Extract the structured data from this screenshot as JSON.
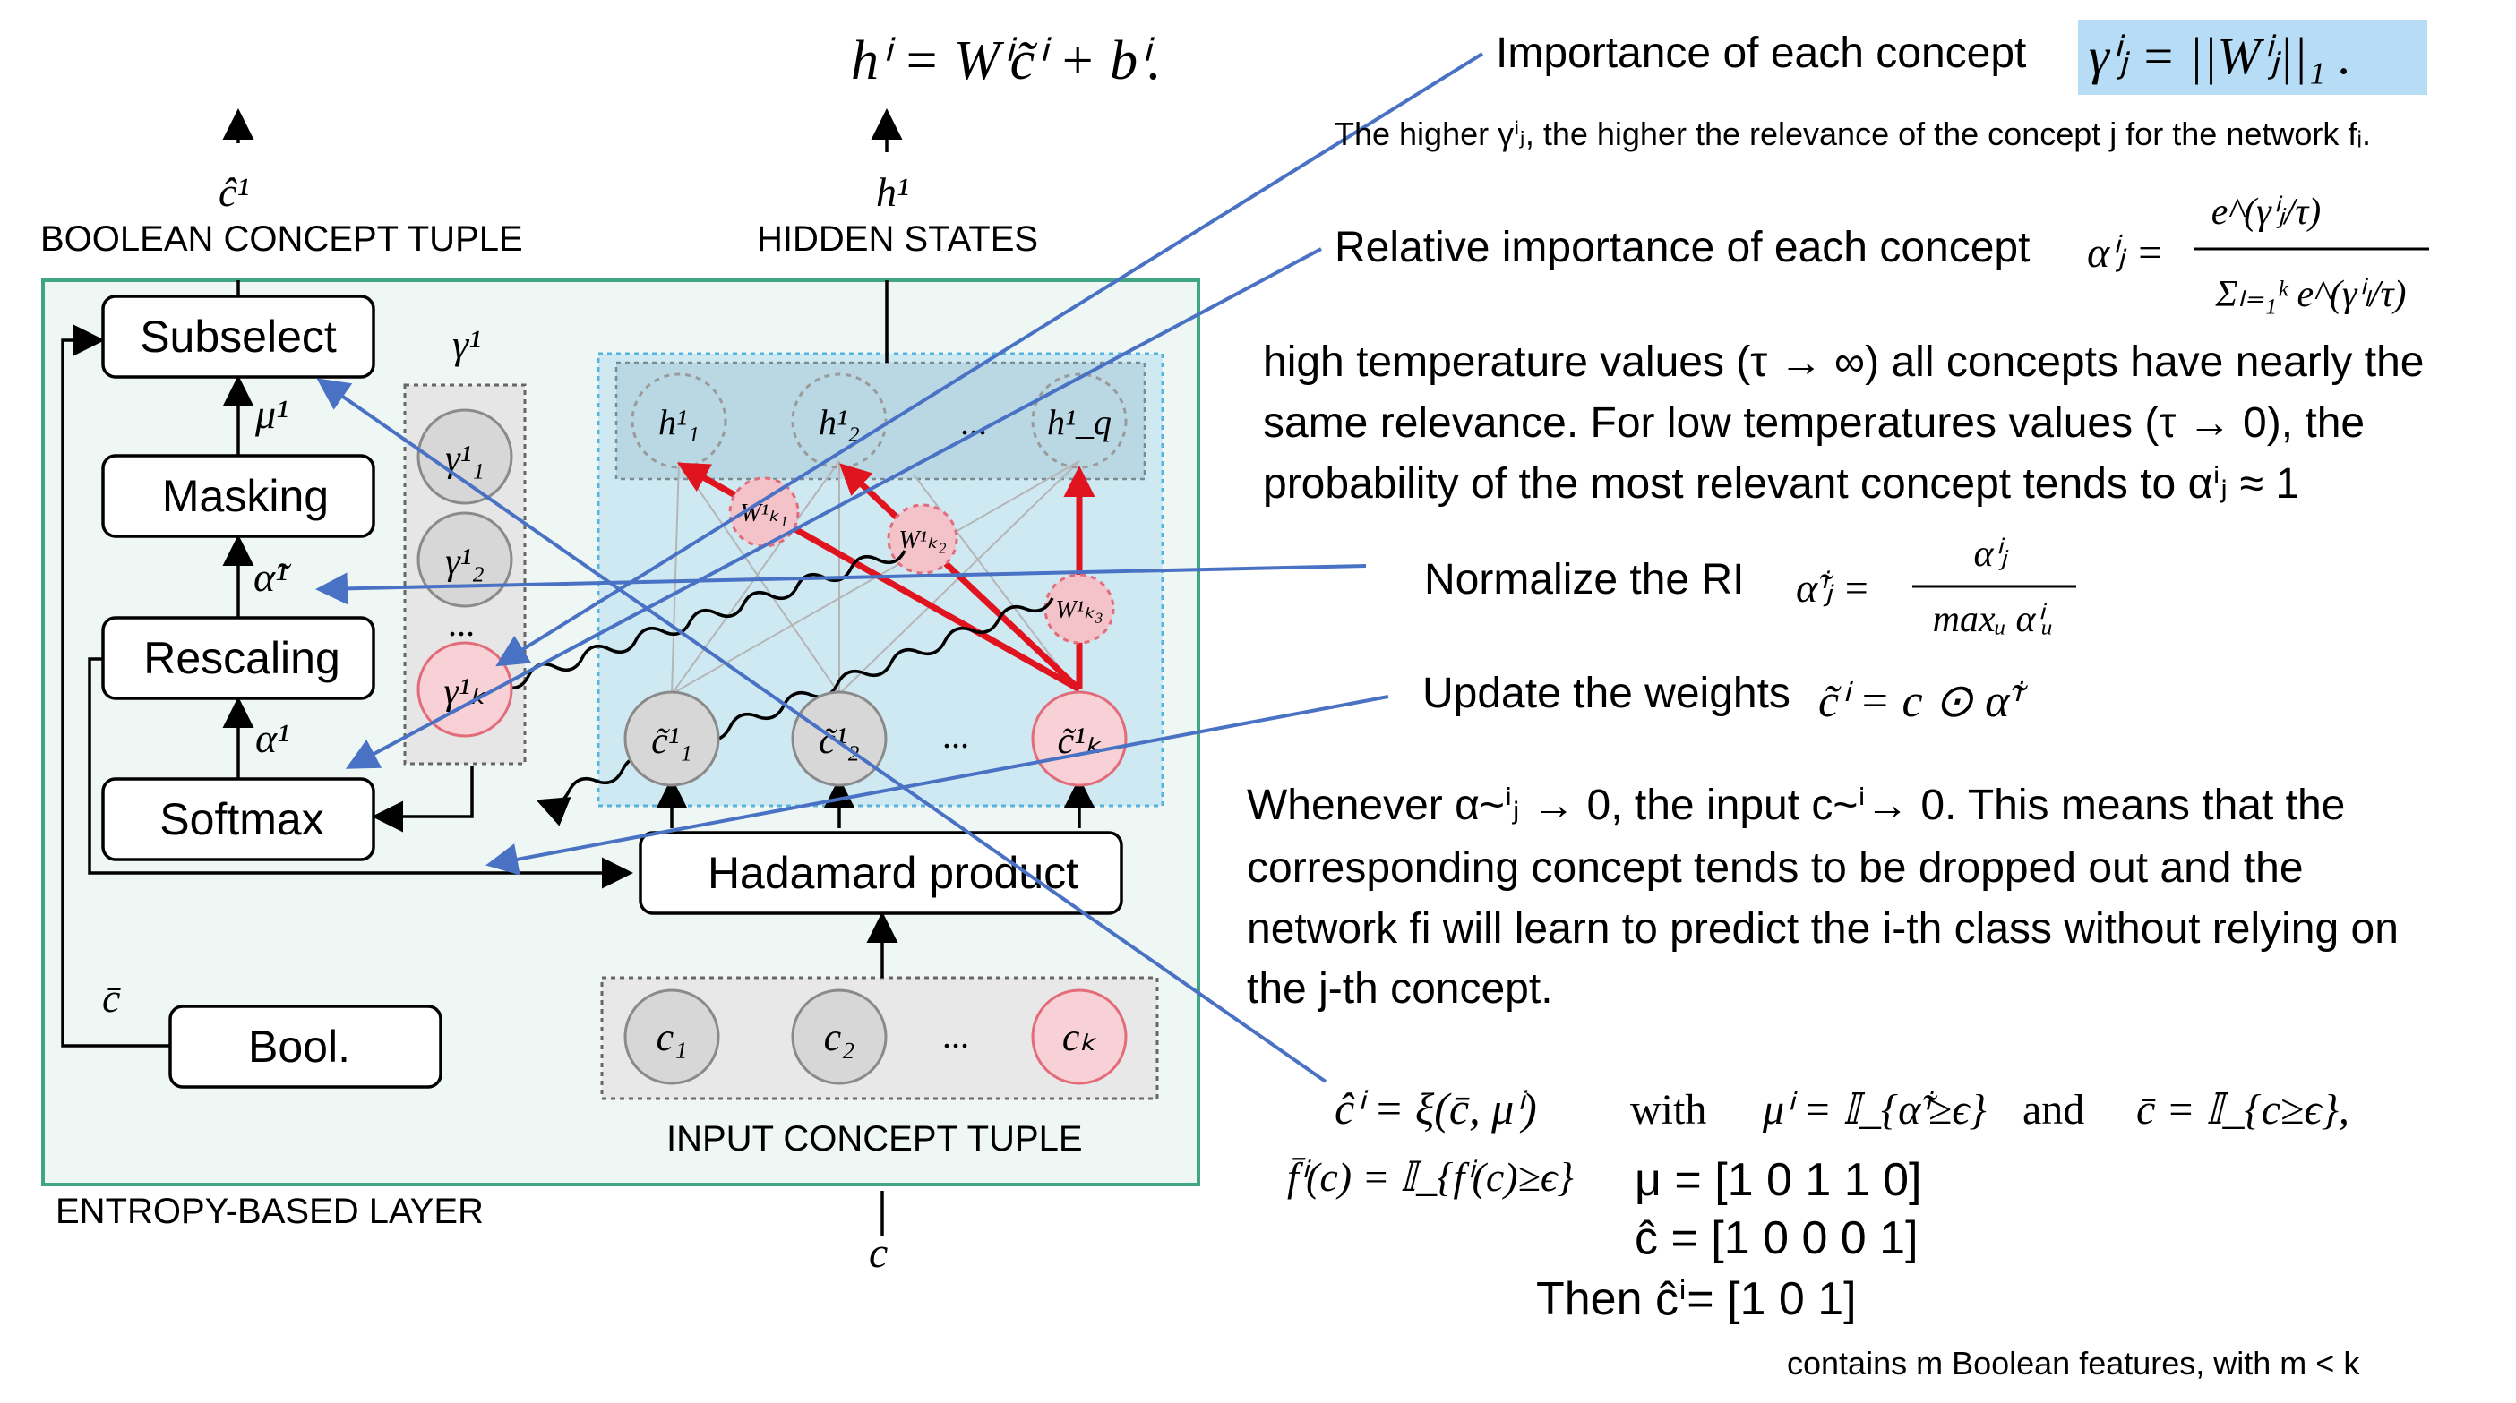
{
  "layer": {
    "caption": "ENTROPY-BASED LAYER",
    "boxes": {
      "subselect": "Subselect",
      "masking": "Masking",
      "rescaling": "Rescaling",
      "softmax": "Softmax",
      "hadamard": "Hadamard product",
      "bool": "Bool."
    },
    "output_left_label": "BOOLEAN CONCEPT TUPLE",
    "output_right_label": "HIDDEN STATES",
    "input_label": "INPUT CONCEPT TUPLE",
    "output_left_symbol": "ĉ¹",
    "output_right_symbol": "h¹",
    "input_symbol": "c",
    "cbar_symbol": "c̄",
    "mu_symbol": "μ¹",
    "alpha_tilde_symbol": "α̃¹",
    "alpha_symbol": "α¹",
    "gamma_header": "γ¹",
    "ellipsis": "...",
    "gamma_nodes": [
      "γ¹₁",
      "γ¹₂",
      "γ¹ₖ"
    ],
    "hidden_nodes": [
      "h¹₁",
      "h¹₂",
      "h¹_q"
    ],
    "ctilde_nodes": [
      "c̃¹₁",
      "c̃¹₂",
      "c̃¹ₖ"
    ],
    "input_nodes": [
      "c₁",
      "c₂",
      "cₖ"
    ],
    "weight_labels": [
      "W¹ₖ₁",
      "W¹ₖ₂",
      "W¹ₖ₃"
    ]
  },
  "top_formula": "hⁱ = Wⁱc̃ⁱ + bⁱ.",
  "annotations": {
    "importance_label": "Importance of each concept",
    "importance_formula": "γⁱⱼ = ||Wⁱⱼ||₁ .",
    "importance_note": "The higher γⁱⱼ, the higher the relevance of the concept j for the network fᵢ.",
    "relative_label": "Relative importance of each concept",
    "relative_formula_lhs": "αⁱⱼ =",
    "relative_formula_num": "e^(γⁱⱼ/τ)",
    "relative_formula_den": "Σₗ₌₁ᵏ e^(γⁱₗ/τ)",
    "temperature_text": [
      "high temperature values (τ → ∞) all concepts have nearly the",
      "same relevance. For low temperatures values (τ → 0), the",
      "probability of the most relevant concept tends to αⁱⱼ ≈ 1"
    ],
    "normalize_label": "Normalize the RI",
    "normalize_formula_lhs": "α̃ⁱⱼ =",
    "normalize_formula_num": "αⁱⱼ",
    "normalize_formula_den": "maxᵤ αⁱᵤ",
    "update_label": "Update the weights",
    "update_formula": "c̃ⁱ = c ⊙ α̃ⁱ",
    "whenever_text": [
      "Whenever α~ⁱⱼ → 0, the input c~ⁱ→ 0. This means that the",
      "corresponding concept tends to be dropped out and the",
      "network fi will learn to predict the i-th class without relying  on",
      "the j-th concept."
    ],
    "xi_formula": "ĉⁱ = ξ(c̄, μⁱ)",
    "with_word": "with",
    "mu_formula": "μⁱ = 𝕀_{α̃ⁱ≥ϵ}",
    "and_word": "and",
    "cbar_formula": "c̄ = 𝕀_{c≥ϵ},",
    "fbar_formula": "f̄ⁱ(c) = 𝕀_{fⁱ(c)≥ϵ}",
    "mu_vector": "μ = [1 0 1 1 0]",
    "chat_vector": "ĉ =  [1 0  0 0 1]",
    "then_vector": "Then ĉⁱ=  [1     0 1]",
    "footnote": "contains m Boolean features, with m < k"
  },
  "colors": {
    "layer_border": "#3fa585",
    "hidden_panel": "#cfe9f3",
    "hidden_panel_border": "#58b3dc",
    "red_arrow": "#e0141e",
    "blue_line": "#4a72c4",
    "formula_highlight": "#b7dcf5"
  }
}
